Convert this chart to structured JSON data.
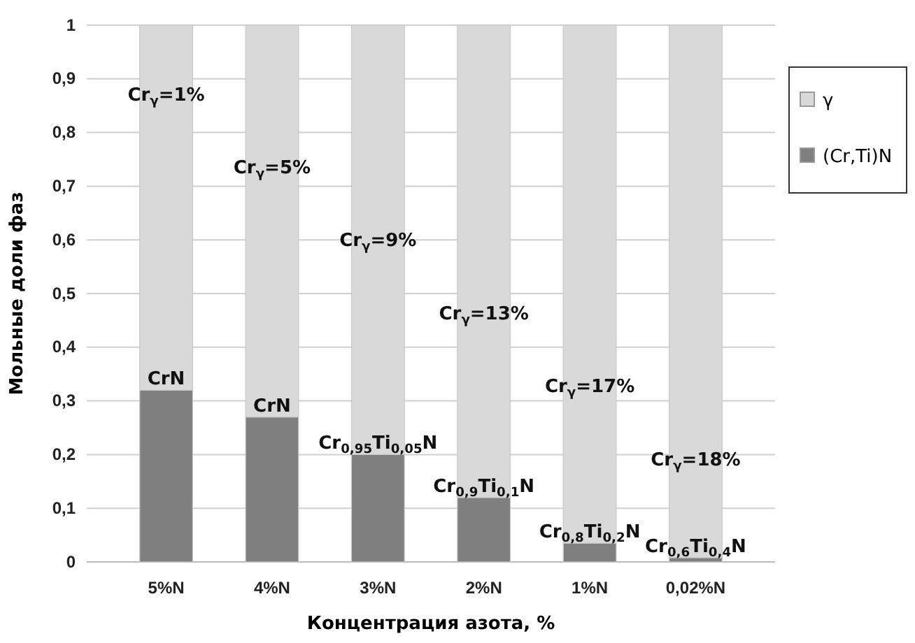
{
  "chart_data": {
    "type": "bar",
    "stacked": true,
    "xlabel": "Концентрация азота, %",
    "ylabel": "Мольные доли фаз",
    "categories": [
      "5%N",
      "4%N",
      "3%N",
      "2%N",
      "1%N",
      "0,02%N"
    ],
    "series": [
      {
        "name": "(Cr,Ti)N",
        "color": "#7f7f7f",
        "values": [
          0.32,
          0.27,
          0.2,
          0.12,
          0.035,
          0.008
        ]
      },
      {
        "name": "γ",
        "color": "#d9d9d9",
        "values": [
          0.68,
          0.73,
          0.8,
          0.88,
          0.965,
          0.992
        ]
      }
    ],
    "ylim": [
      0,
      1
    ],
    "yticks": [
      0,
      {
        "value": 0.1,
        "label": "0,1"
      },
      {
        "value": 0.2,
        "label": "0,2"
      },
      {
        "value": 0.3,
        "label": "0,3"
      },
      {
        "value": 0.4,
        "label": "0,4"
      },
      {
        "value": 0.5,
        "label": "0,5"
      },
      {
        "value": 0.6,
        "label": "0,6"
      },
      {
        "value": 0.7,
        "label": "0,7"
      },
      {
        "value": 0.8,
        "label": "0,8"
      },
      {
        "value": 0.9,
        "label": "0,9"
      },
      1
    ],
    "grid": "y",
    "legend": "right",
    "annotations": [
      "Cr$_{γ}$=1%",
      "Cr$_{γ}$=5%",
      "Cr$_{γ}$=9%",
      "Cr$_{γ}$=13%",
      "Cr$_{γ}$=17%",
      "Cr$_{γ}$=18%",
      {
        "text": "CrN",
        "x": "5%N",
        "y": 0.32
      },
      {
        "text": "CrN",
        "x": "4%N",
        "y": 0.27
      },
      {
        "text": "Cr$_{0,95}$Ti$_{0,05}$N",
        "x": "3%N",
        "y": 0.2
      },
      {
        "text": "Cr$_{0,9}$Ti$_{0,1}$N",
        "x": "2%N",
        "y": 0.12
      },
      {
        "text": "Cr$_{0,8}$Ti$_{0,2}$N",
        "x": "1%N",
        "y": 0.035
      },
      {
        "text": "Cr$_{0,6}$Ti$_{0,4}$N",
        "x": "0,02%N",
        "y": 0.008
      }
    ]
  }
}
